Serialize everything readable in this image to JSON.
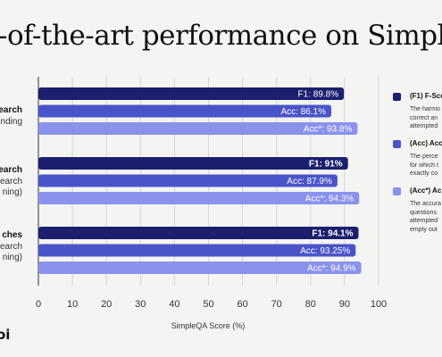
{
  "title": "-of-the-art performance on Simple",
  "row_labels": [
    {
      "name": "earch",
      "sub": "nding"
    },
    {
      "name": "earch",
      "sub": "earch",
      "sub2": "ning)"
    },
    {
      "name": "ches",
      "sub": "earch",
      "sub2": "ning)"
    }
  ],
  "legend": [
    {
      "title": "(F1) F-Sco",
      "color": "#1b1f6e",
      "desc": [
        "The harmo",
        "correct an",
        "attempted"
      ]
    },
    {
      "title": "(Acc) Acc",
      "color": "#4a54c9",
      "desc": [
        "The perce",
        "for which t",
        "exactly co"
      ]
    },
    {
      "title": "(Acc*) Ac",
      "color": "#8a92ec",
      "desc": [
        "The accura",
        "questions",
        "attempted",
        "empty out"
      ]
    }
  ],
  "logo": "oi",
  "chart_data": {
    "type": "bar",
    "orientation": "horizontal",
    "xlabel": "SimpleQA Score (%)",
    "xlim": [
      0,
      100
    ],
    "xticks": [
      0,
      10,
      20,
      30,
      40,
      50,
      60,
      70,
      80,
      90,
      100
    ],
    "grid": true,
    "groups": [
      {
        "bars": [
          {
            "label": "F1: 89.8%",
            "value": 89.8,
            "color": "#1b1f6e",
            "bold": false
          },
          {
            "label": "Acc: 86.1%",
            "value": 86.1,
            "color": "#4a54c9",
            "bold": false
          },
          {
            "label": "Acc*: 93.8%",
            "value": 93.8,
            "color": "#8a92ec",
            "bold": false
          }
        ]
      },
      {
        "bars": [
          {
            "label": "F1: 91%",
            "value": 91,
            "color": "#1b1f6e",
            "bold": true
          },
          {
            "label": "Acc: 87.9%",
            "value": 87.9,
            "color": "#4a54c9",
            "bold": false
          },
          {
            "label": "Acc*: 94.3%",
            "value": 94.3,
            "color": "#8a92ec",
            "bold": false
          }
        ]
      },
      {
        "bars": [
          {
            "label": "F1: 94.1%",
            "value": 94.1,
            "color": "#1b1f6e",
            "bold": true
          },
          {
            "label": "Acc: 93.25%",
            "value": 93.25,
            "color": "#4a54c9",
            "bold": false
          },
          {
            "label": "Acc*: 94.9%",
            "value": 94.9,
            "color": "#8a92ec",
            "bold": false
          }
        ]
      }
    ]
  }
}
